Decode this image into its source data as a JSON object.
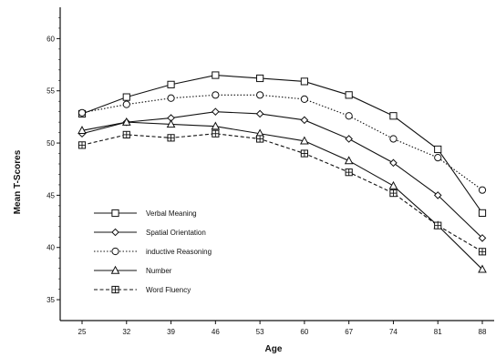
{
  "chart_data": {
    "type": "line",
    "title": "",
    "xlabel": "Age",
    "ylabel": "Mean T-Scores",
    "x": [
      25,
      32,
      39,
      46,
      53,
      60,
      67,
      74,
      81,
      88
    ],
    "x_tick_labels": [
      "25",
      "32",
      "39",
      "46",
      "53",
      "60",
      "67",
      "74",
      "81",
      "88"
    ],
    "y_ticks": [
      35,
      40,
      45,
      50,
      55,
      60
    ],
    "y_tick_labels": [
      "35",
      "40",
      "45",
      "50",
      "55",
      "60"
    ],
    "ylim": [
      33,
      63
    ],
    "grid": false,
    "legend_position": "bottom-left",
    "series": [
      {
        "name": "Verbal Meaning",
        "marker": "square",
        "line": "solid",
        "values": [
          52.8,
          54.4,
          55.6,
          56.5,
          56.2,
          55.9,
          54.6,
          52.6,
          49.4,
          43.3
        ]
      },
      {
        "name": "Spatial Orientation",
        "marker": "diamond",
        "line": "solid",
        "values": [
          50.9,
          52.0,
          52.4,
          53.0,
          52.8,
          52.2,
          50.4,
          48.1,
          45.0,
          40.9
        ]
      },
      {
        "name": "inductive Reasoning",
        "marker": "circle",
        "line": "dotted",
        "values": [
          52.9,
          53.7,
          54.3,
          54.6,
          54.6,
          54.2,
          52.6,
          50.4,
          48.6,
          45.5
        ]
      },
      {
        "name": "Number",
        "marker": "triangle",
        "line": "solid",
        "values": [
          51.2,
          52.0,
          51.8,
          51.6,
          50.9,
          50.2,
          48.3,
          45.9,
          42.1,
          37.9
        ]
      },
      {
        "name": "Word Fluency",
        "marker": "boxplus",
        "line": "dashed",
        "values": [
          49.8,
          50.8,
          50.5,
          50.9,
          50.4,
          49.0,
          47.2,
          45.2,
          42.1,
          39.6
        ]
      }
    ]
  }
}
